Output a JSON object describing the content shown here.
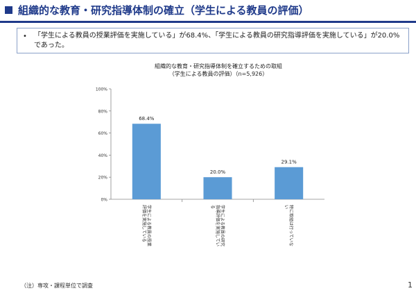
{
  "header": {
    "title": "組織的な教育・研究指導体制の確立（学生による教員の評価）"
  },
  "summary": {
    "bullet": "•",
    "text": "「学生による教員の授業評価を実施している」が68.4%、「学生による教員の研究指導評価を実施している」が20.0%であった。"
  },
  "chart_data": {
    "type": "bar",
    "title": "組織的な教育・研究指導体制を確立するための取組",
    "subtitle": "（学生による教員の評価）（n=5,926）",
    "categories": [
      "学生による教員の授業評価を実施している",
      "学生による教員の研究指導評価を実施している",
      "特に取組は行っていない"
    ],
    "values": [
      68.4,
      20.0,
      29.1
    ],
    "data_labels": [
      "68.4%",
      "20.0%",
      "29.1%"
    ],
    "y_ticks": [
      "100%",
      "80%",
      "60%",
      "40%",
      "20%",
      "0%"
    ],
    "ylim": [
      0,
      100
    ],
    "bar_color": "#5b9bd5",
    "grid": false
  },
  "footer": {
    "note": "（注）専攻・課程単位で調査",
    "page_number": "1"
  }
}
